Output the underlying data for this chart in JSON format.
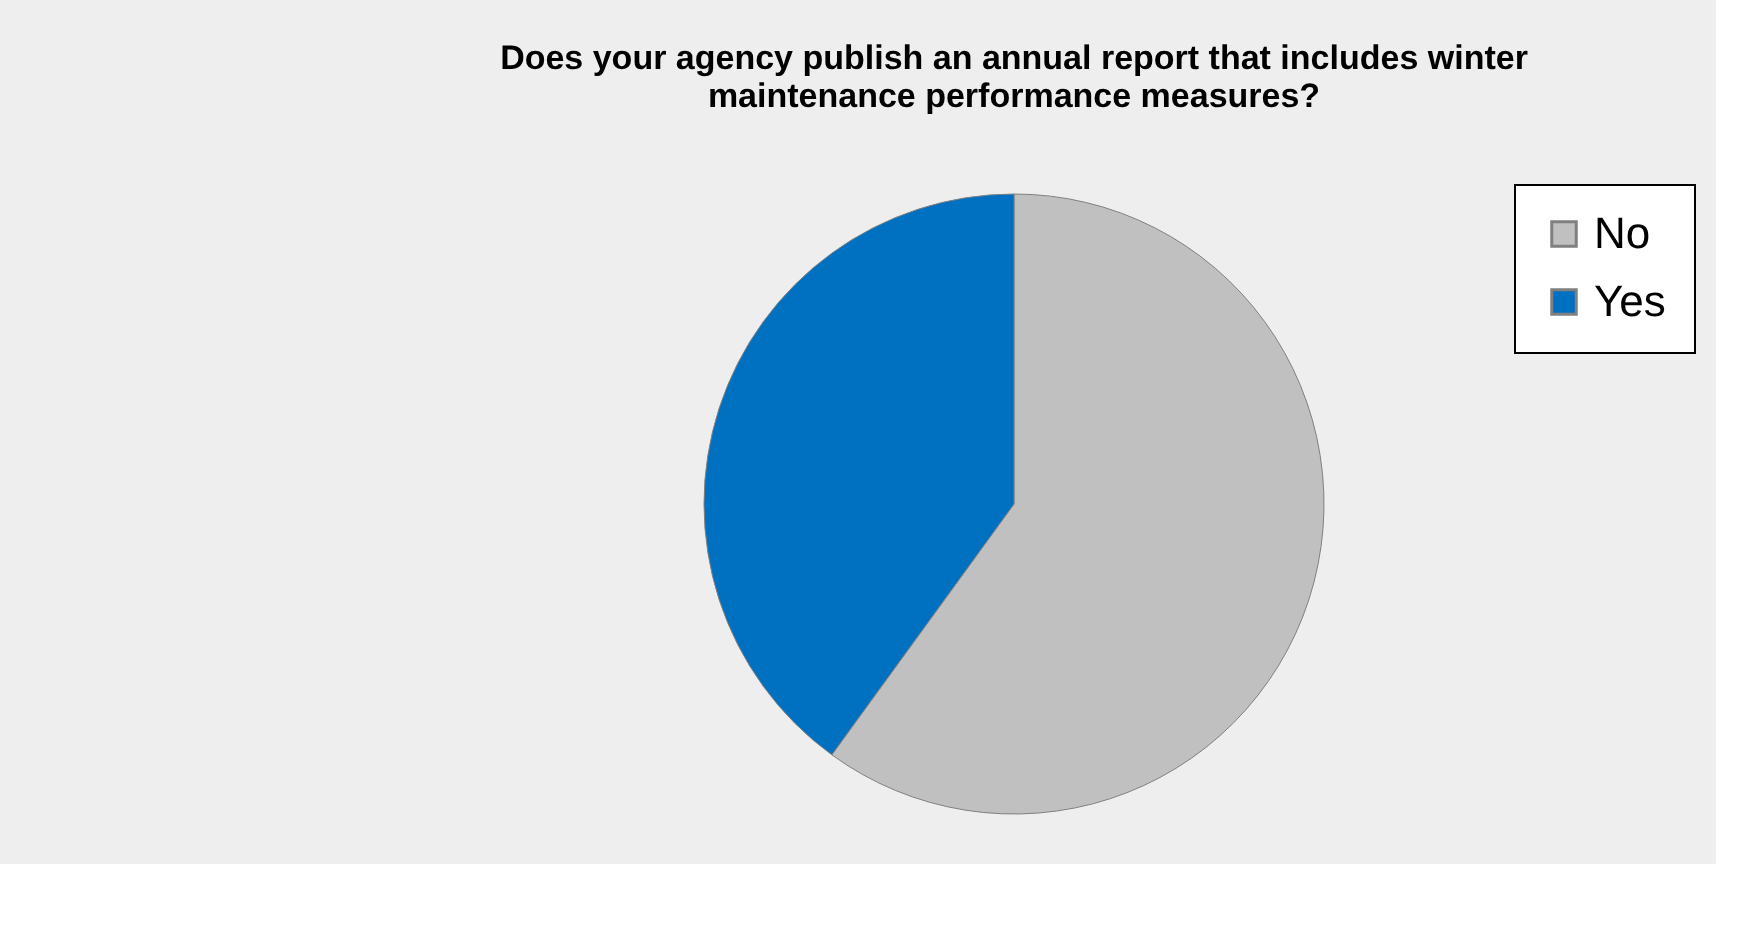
{
  "chart_data": {
    "type": "pie",
    "title": "Does your agency publish an annual report that includes winter maintenance performance measures?",
    "categories": [
      "No",
      "Yes"
    ],
    "values": [
      60,
      40
    ],
    "colors": [
      "#c0c0c0",
      "#0070c0"
    ],
    "legend": "right"
  }
}
